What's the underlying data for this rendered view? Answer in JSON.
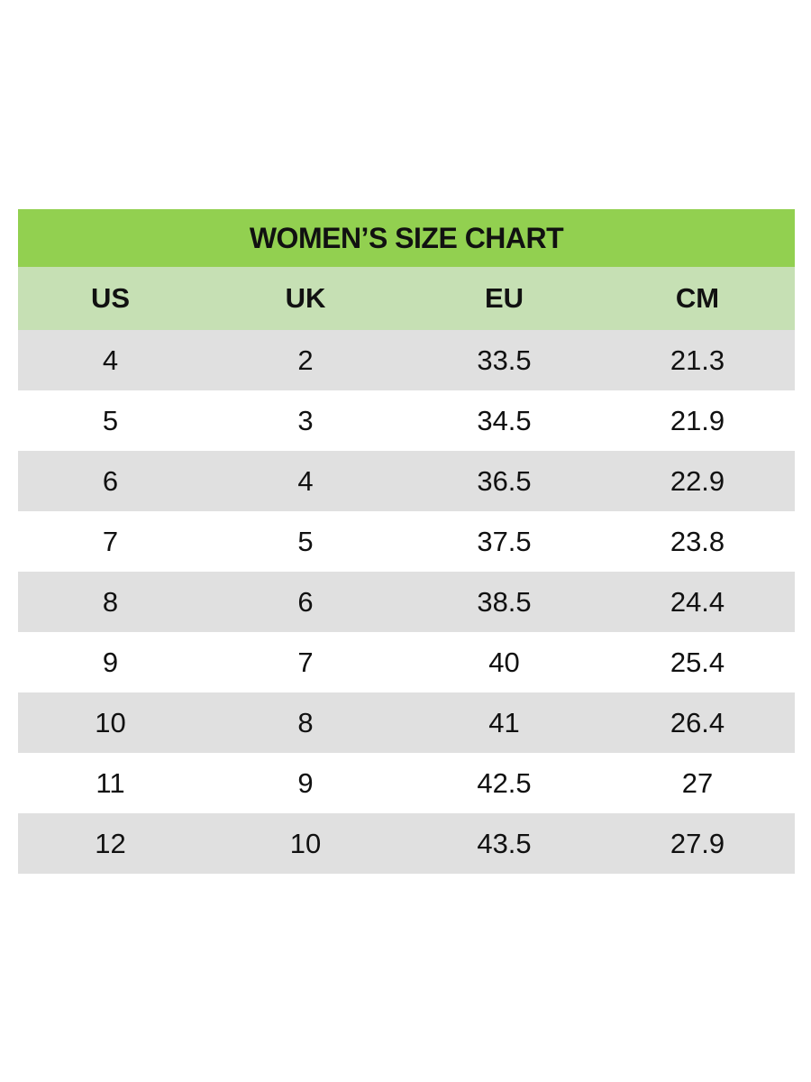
{
  "title": "WOMEN’S SIZE CHART",
  "colors": {
    "title_bg": "#92d050",
    "header_bg": "#c6e0b4",
    "shaded_row_bg": "#e0e0e0",
    "plain_row_bg": "#ffffff"
  },
  "columns": [
    "US",
    "UK",
    "EU",
    "CM"
  ],
  "rows": [
    [
      "4",
      "2",
      "33.5",
      "21.3"
    ],
    [
      "5",
      "3",
      "34.5",
      "21.9"
    ],
    [
      "6",
      "4",
      "36.5",
      "22.9"
    ],
    [
      "7",
      "5",
      "37.5",
      "23.8"
    ],
    [
      "8",
      "6",
      "38.5",
      "24.4"
    ],
    [
      "9",
      "7",
      "40",
      "25.4"
    ],
    [
      "10",
      "8",
      "41",
      "26.4"
    ],
    [
      "11",
      "9",
      "42.5",
      "27"
    ],
    [
      "12",
      "10",
      "43.5",
      "27.9"
    ]
  ]
}
